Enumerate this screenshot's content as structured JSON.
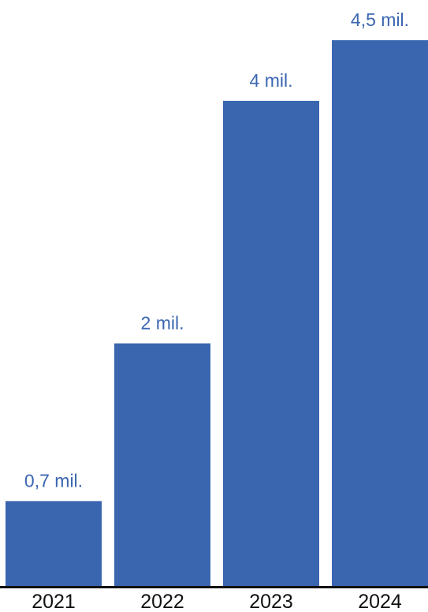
{
  "chart_data": {
    "type": "bar",
    "categories": [
      "2021",
      "2022",
      "2023",
      "2024"
    ],
    "values": [
      0.7,
      2,
      4,
      4.5
    ],
    "data_labels": [
      "0,7 mil.",
      "2 mil.",
      "4 mil.",
      "4,5 mil."
    ],
    "title": "",
    "xlabel": "",
    "ylabel": "",
    "ylim": [
      0,
      4.5
    ],
    "grid": false,
    "legend": "none",
    "colors": {
      "bar": "#3A66B0",
      "label": "#3A66B0",
      "axis": "#111111"
    }
  }
}
